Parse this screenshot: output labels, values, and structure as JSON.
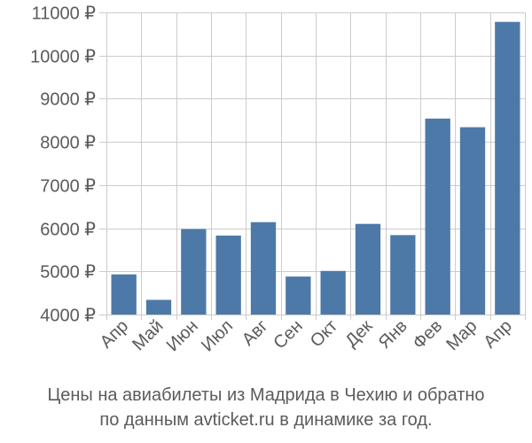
{
  "chart_data": {
    "type": "bar",
    "categories": [
      "Апр",
      "Май",
      "Июн",
      "Июл",
      "Авг",
      "Сен",
      "Окт",
      "Дек",
      "Янв",
      "Фев",
      "Мар",
      "Апр"
    ],
    "values": [
      4930,
      4340,
      5980,
      5830,
      6140,
      4880,
      5010,
      6100,
      5840,
      8540,
      8340,
      10780
    ],
    "yticks": [
      4000,
      5000,
      6000,
      7000,
      8000,
      9000,
      10000,
      11000
    ],
    "ytick_labels": [
      "4000 ₽",
      "5000 ₽",
      "6000 ₽",
      "7000 ₽",
      "8000 ₽",
      "9000 ₽",
      "10000 ₽",
      "11000 ₽"
    ],
    "ylim": [
      4000,
      11000
    ],
    "grid": true,
    "bar_color": "#4d79a8",
    "grid_color": "#cccccc",
    "text_color": "#5b5b5b"
  },
  "caption": {
    "line1": "Цены на авиабилеты из Мадрида в Чехию и обратно",
    "line2": "по данным avticket.ru в динамике за год."
  }
}
